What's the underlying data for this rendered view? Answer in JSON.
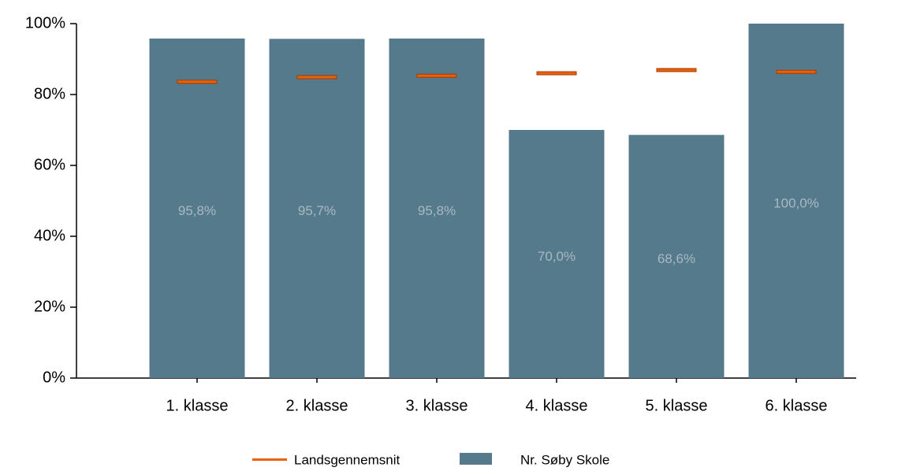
{
  "chart_data": {
    "type": "bar",
    "categories": [
      "1. klasse",
      "2. klasse",
      "3. klasse",
      "4. klasse",
      "5. klasse",
      "6. klasse"
    ],
    "series": [
      {
        "name": "Landsgennemsnit",
        "type": "marker",
        "color": "#e8620c",
        "values": [
          83.6,
          84.9,
          85.3,
          86.0,
          86.9,
          86.4
        ]
      },
      {
        "name": "Nr. Søby Skole",
        "type": "bar",
        "color": "#547a8c",
        "values": [
          95.8,
          95.7,
          95.8,
          70.0,
          68.6,
          100.0
        ],
        "value_labels": [
          "95,8%",
          "95,7%",
          "95,8%",
          "70,0%",
          "68,6%",
          "100,0%"
        ]
      }
    ],
    "ylim": [
      0,
      100
    ],
    "yticks": [
      {
        "value": 0,
        "label": "0%"
      },
      {
        "value": 20,
        "label": "20%"
      },
      {
        "value": 40,
        "label": "40%"
      },
      {
        "value": 60,
        "label": "60%"
      },
      {
        "value": 80,
        "label": "80%"
      },
      {
        "value": 100,
        "label": "100%"
      }
    ],
    "legend": "bottom"
  }
}
